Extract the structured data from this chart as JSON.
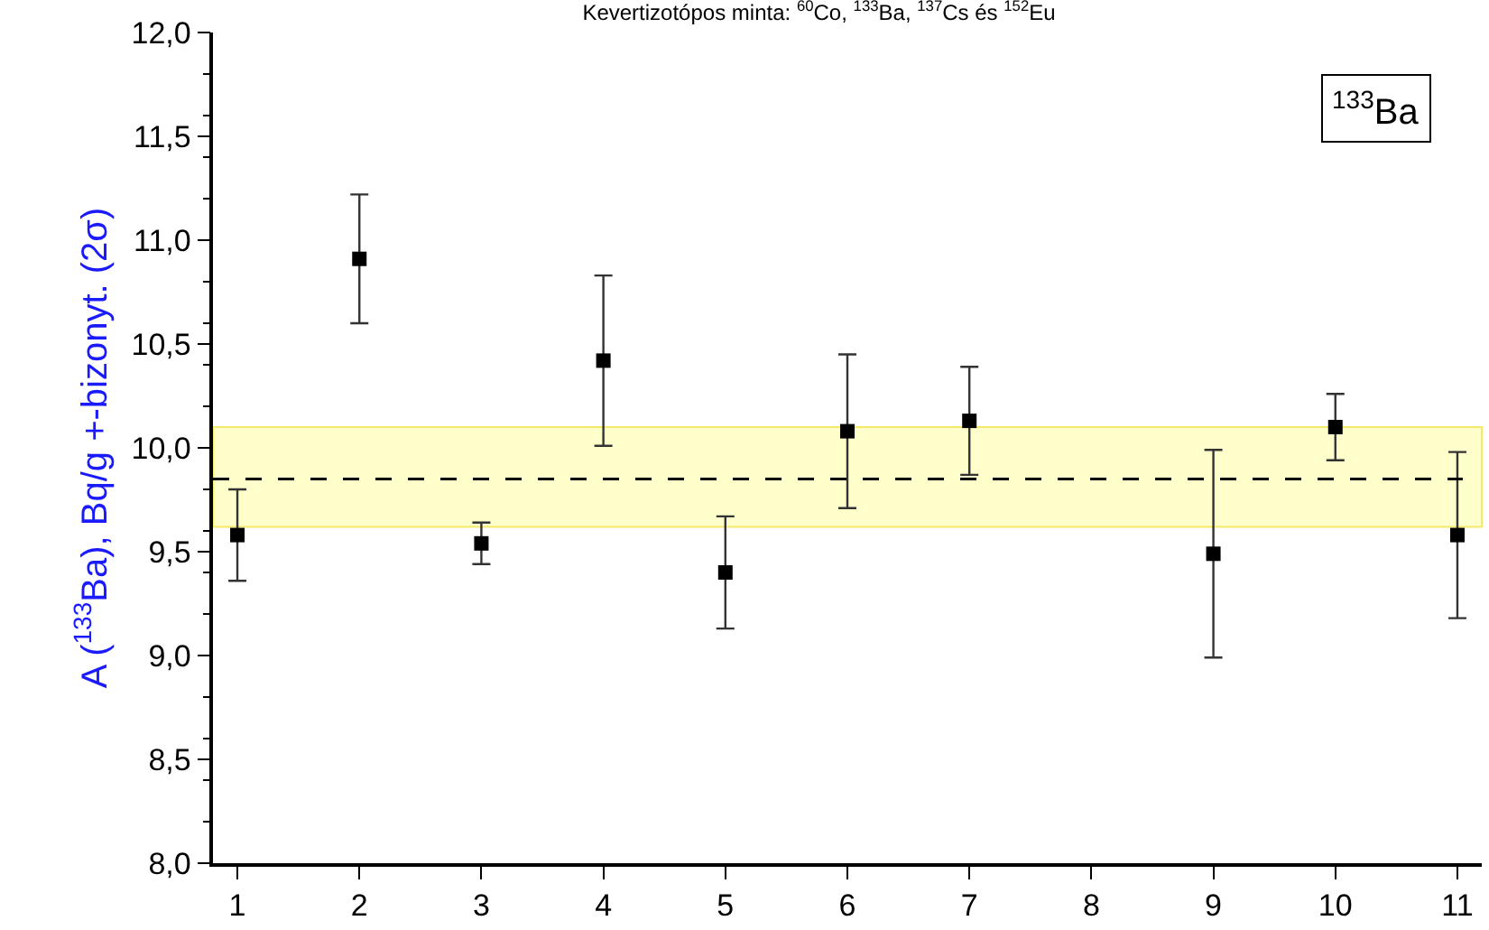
{
  "chart_data": {
    "type": "scatter",
    "title": "Kevertizotópos minta: $^{60}$Co, $^{133}$Ba, $^{137}$Cs és $^{152}$Eu",
    "ylabel": "A ($^{133}$Ba), Bq/g +-bizonyt. (2σ)",
    "annotations": [
      "$^{133}$Ba"
    ],
    "x": [
      1,
      2,
      3,
      4,
      5,
      6,
      7,
      9,
      10,
      11
    ],
    "series": [
      {
        "color": "#000000",
        "values": [
          9.58,
          10.91,
          9.54,
          10.42,
          9.4,
          10.08,
          10.13,
          9.49,
          10.1,
          9.58
        ],
        "errors": [
          0.22,
          0.31,
          0.1,
          0.41,
          0.27,
          0.37,
          0.26,
          0.5,
          0.16,
          0.4
        ]
      }
    ],
    "xlim": [
      0.8,
      11.2
    ],
    "xticks": [
      1,
      2,
      3,
      4,
      5,
      6,
      7,
      8,
      9,
      10,
      11
    ],
    "ylim": [
      8,
      12
    ],
    "yticks": [
      {
        "value": 8,
        "label": "8,0"
      },
      {
        "value": 8.5,
        "label": "8,5"
      },
      {
        "value": 9,
        "label": "9,0"
      },
      {
        "value": 9.5,
        "label": "9,5"
      },
      {
        "value": 10,
        "label": "10,0"
      },
      {
        "value": 10.5,
        "label": "10,5"
      },
      {
        "value": 11,
        "label": "11,0"
      },
      {
        "value": 11.5,
        "label": "11,5"
      },
      {
        "value": 12,
        "label": "12,0"
      }
    ],
    "ref_lines": [
      {
        "axis": "y",
        "value": 9.85,
        "color": "#000000",
        "line_style": "dashed"
      }
    ],
    "bands": [
      {
        "axis": "y",
        "from": 9.62,
        "to": 10.1,
        "color": "#ffffcc"
      }
    ],
    "grid": false,
    "legend": false,
    "marker": "square"
  }
}
